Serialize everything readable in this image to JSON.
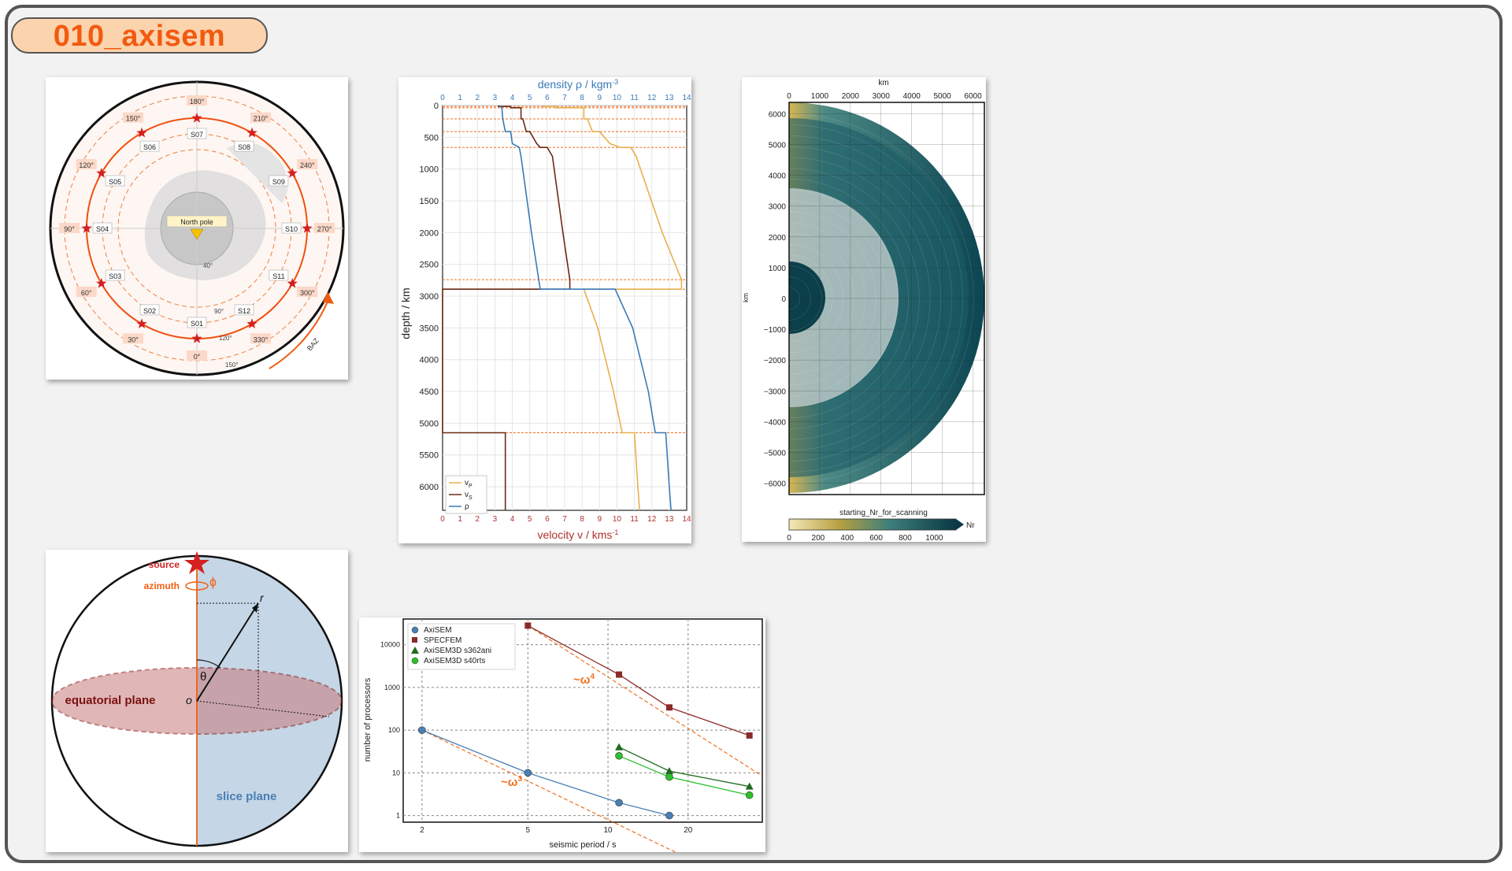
{
  "title": "010_axisem",
  "polar_map": {
    "top_azimuth": "180°",
    "azimuth_labels": [
      "210°",
      "150°",
      "240°",
      "120°",
      "270°",
      "90°",
      "300°",
      "60°",
      "330°",
      "30°",
      "0°"
    ],
    "stations": [
      "S07",
      "S08",
      "S06",
      "S09",
      "S05",
      "S10",
      "S04",
      "S11",
      "S03",
      "S12",
      "S02",
      "S01"
    ],
    "center_label": "North pole",
    "distance_labels": [
      "40°",
      "90°",
      "120°",
      "150°"
    ],
    "baz_label": "BAZ"
  },
  "earth_model": {
    "top_axis_label": "density ρ / kgm",
    "top_axis_exp": "-3",
    "bottom_axis_label": "velocity v / kms",
    "bottom_axis_exp": "-1",
    "y_label": "depth / km",
    "x_ticks": [
      "0",
      "1",
      "2",
      "3",
      "4",
      "5",
      "6",
      "7",
      "8",
      "9",
      "10",
      "11",
      "12",
      "13",
      "14"
    ],
    "y_ticks": [
      "0",
      "500",
      "1000",
      "1500",
      "2000",
      "2500",
      "3000",
      "3500",
      "4000",
      "4500",
      "5000",
      "5500",
      "6000"
    ],
    "legend": {
      "vp": "v",
      "vp_sub": "P",
      "vs": "v",
      "vs_sub": "S",
      "rho": "ρ"
    },
    "colors": {
      "vp": "#e8b04a",
      "vs": "#6b2a14",
      "rho": "#3a7ab8",
      "disc": "#f07020"
    }
  },
  "mesh": {
    "top_label": "km",
    "x_ticks": [
      "0",
      "1000",
      "2000",
      "3000",
      "4000",
      "5000",
      "6000"
    ],
    "y_ticks": [
      "6000",
      "5000",
      "4000",
      "3000",
      "2000",
      "1000",
      "0",
      "−1000",
      "−2000",
      "−3000",
      "−4000",
      "−5000",
      "−6000"
    ],
    "y_label": "km",
    "colorbar_title": "starting_Nr_for_scanning",
    "colorbar_ticks": [
      "0",
      "200",
      "400",
      "600",
      "800",
      "1000"
    ],
    "colorbar_unit": "Nr"
  },
  "sphere": {
    "source": "source",
    "azimuth": "azimuth",
    "phi": "ϕ",
    "r": "r",
    "theta": "θ",
    "origin": "o",
    "equatorial_plane": "equatorial plane",
    "slice_plane": "slice plane"
  },
  "scaling_chart": {
    "xlabel": "seismic period / s",
    "ylabel": "number of processors",
    "x_ticks": [
      "2",
      "5",
      "10",
      "20"
    ],
    "y_ticks": [
      "10000",
      "1000",
      "100",
      "10",
      "1"
    ],
    "annotation_w4": "~ω",
    "annotation_w4_exp": "4",
    "annotation_w3": "~ω",
    "annotation_w3_exp": "3"
  },
  "chart_data": {
    "type": "line",
    "xlabel": "seismic period / s",
    "ylabel": "number of processors",
    "xscale": "log",
    "yscale": "log",
    "xlim": [
      1.7,
      38
    ],
    "ylim": [
      0.7,
      40000
    ],
    "grid": true,
    "legend_position": "top-left",
    "series": [
      {
        "name": "AxiSEM",
        "marker": "circle",
        "color": "#4a7fb5",
        "x": [
          2,
          5,
          11,
          17
        ],
        "y": [
          100,
          10,
          2,
          1
        ]
      },
      {
        "name": "SPECFEM",
        "marker": "square",
        "color": "#8b2a2a",
        "x": [
          5,
          11,
          17,
          34
        ],
        "y": [
          28000,
          2000,
          340,
          75
        ]
      },
      {
        "name": "AxiSEM3D s362ani",
        "marker": "triangle",
        "color": "#1f6b1f",
        "x": [
          11,
          17,
          34
        ],
        "y": [
          40,
          11,
          4.8
        ]
      },
      {
        "name": "AxiSEM3D s40rts",
        "marker": "circle",
        "color": "#2cc02c",
        "x": [
          11,
          17,
          34
        ],
        "y": [
          25,
          8,
          3
        ]
      }
    ]
  }
}
